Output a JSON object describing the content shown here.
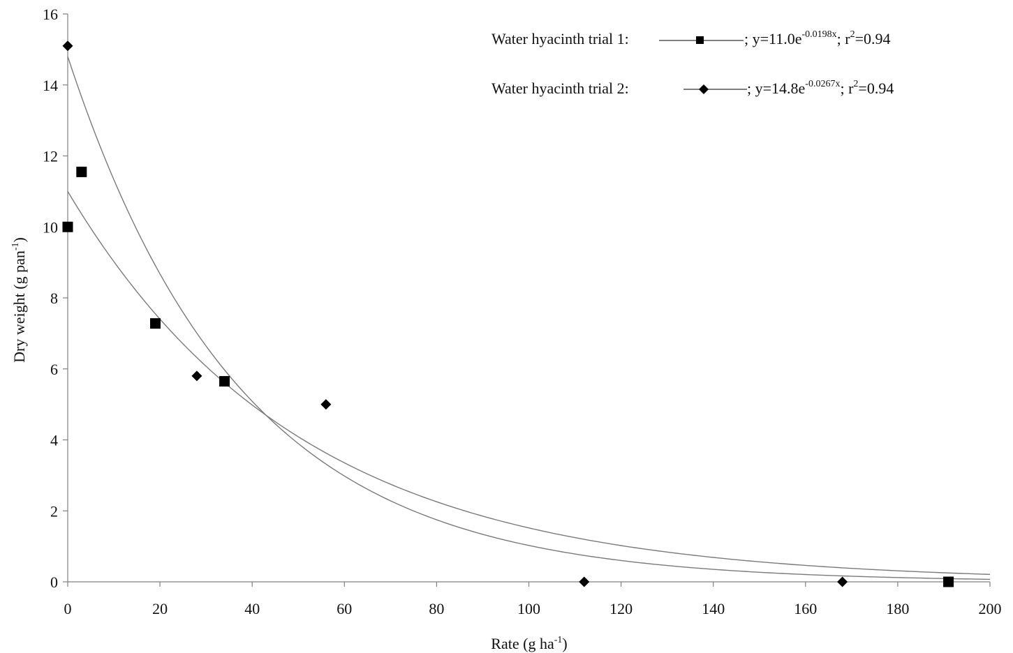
{
  "chart_data": {
    "type": "scatter",
    "xlabel": "Rate (g ha",
    "xlabel_sup": "-1",
    "xlabel_end": ")",
    "ylabel": "Dry weight (g pan",
    "ylabel_sup": "-1",
    "ylabel_end": ")",
    "xlim": [
      0,
      200
    ],
    "ylim": [
      0,
      16
    ],
    "xticks": [
      0,
      20,
      40,
      60,
      80,
      100,
      120,
      140,
      160,
      180,
      200
    ],
    "yticks": [
      0,
      2,
      4,
      6,
      8,
      10,
      12,
      14,
      16
    ],
    "grid": false,
    "legend_position": "top-right",
    "series": [
      {
        "name": "Water hyacinth trial 1",
        "marker": "square",
        "points": [
          [
            0,
            10.0
          ],
          [
            3,
            11.55
          ],
          [
            19,
            7.28
          ],
          [
            34,
            5.65
          ],
          [
            191,
            0.0
          ]
        ],
        "fit": {
          "a": 11.0,
          "b": 0.0198
        },
        "legend": {
          "prefix": "Water hyacinth trial 1:",
          "eq": "; y=11.0e",
          "exp": "-0.0198x",
          "r2": "; r",
          "r2sup": "2",
          "r2val": "=0.94"
        }
      },
      {
        "name": "Water hyacinth trial 2",
        "marker": "diamond",
        "points": [
          [
            0,
            15.1
          ],
          [
            28,
            5.8
          ],
          [
            56,
            5.0
          ],
          [
            112,
            0.0
          ],
          [
            168,
            0.0
          ]
        ],
        "fit": {
          "a": 14.8,
          "b": 0.0267
        },
        "legend": {
          "prefix": "Water hyacinth trial 2:",
          "eq": "; y=14.8e",
          "exp": "-0.0267x",
          "r2": "; r",
          "r2sup": "2",
          "r2val": "=0.94"
        }
      }
    ],
    "colors": {
      "marker": "#000000",
      "fit_line": "#7a7a7a",
      "axis": "#808080"
    }
  }
}
